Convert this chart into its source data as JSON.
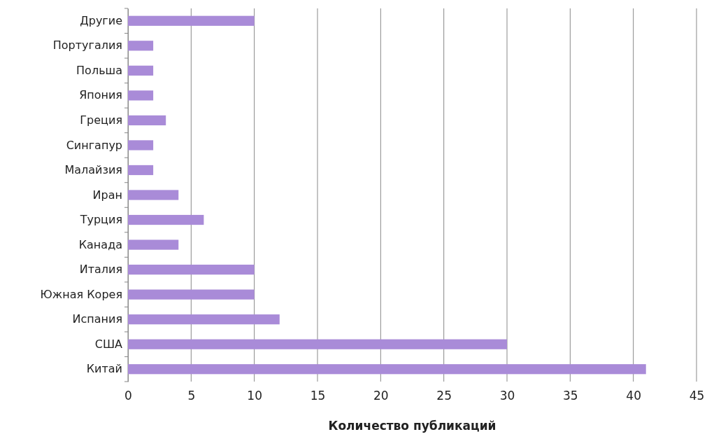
{
  "chart_data": {
    "type": "bar",
    "orientation": "horizontal",
    "xlabel": "Количество публикаций",
    "categories": [
      "Другие",
      "Португалия",
      "Польша",
      "Япония",
      "Греция",
      "Сингапур",
      "Малайзия",
      "Иран",
      "Турция",
      "Канада",
      "Италия",
      "Южная Корея",
      "Испания",
      "США",
      "Китай"
    ],
    "values": [
      10,
      2,
      2,
      2,
      3,
      2,
      2,
      4,
      6,
      4,
      10,
      10,
      12,
      30,
      41
    ],
    "color": "#a98bd8",
    "xlim": [
      0,
      45
    ],
    "xticks": [
      0,
      5,
      10,
      15,
      20,
      25,
      30,
      35,
      40,
      45
    ],
    "grid": "x"
  }
}
